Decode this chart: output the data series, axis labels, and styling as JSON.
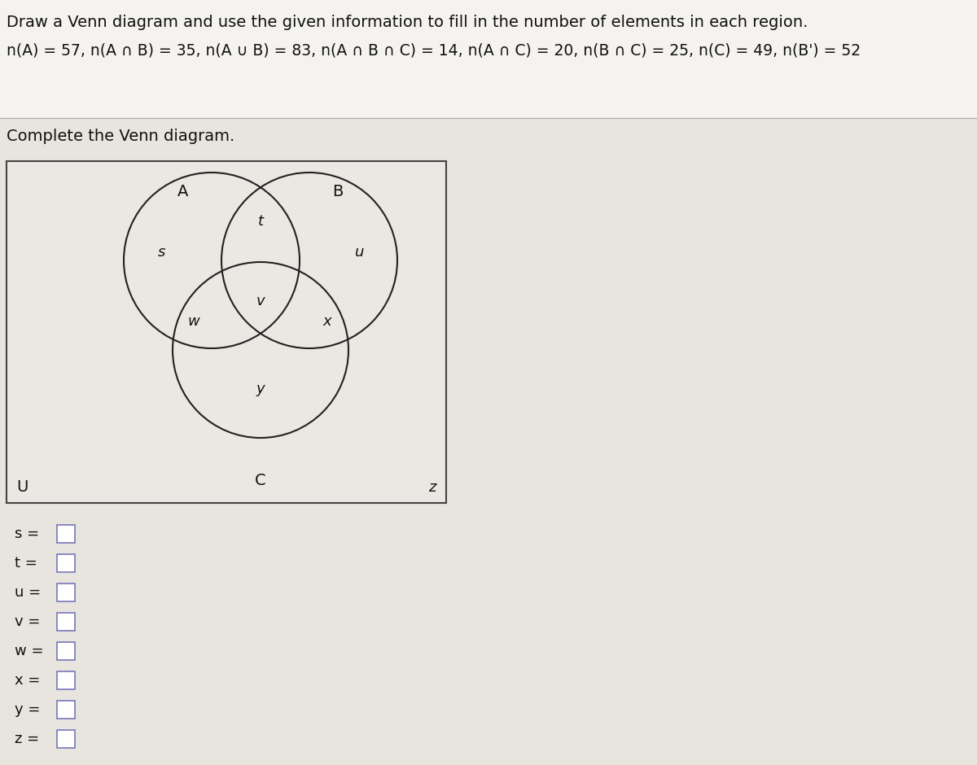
{
  "title_line1": "Draw a Venn diagram and use the given information to fill in the number of elements in each region.",
  "title_line2": "n(A) = 57, n(A ∩ B) = 35, n(A ∪ B) = 83, n(A ∩ B ∩ C) = 14, n(A ∩ C) = 20, n(B ∩ C) = 25, n(C) = 49, n(B') = 52",
  "subtitle": "Complete the Venn diagram.",
  "bg_color": "#e8e4de",
  "panel_color": "#e8e4de",
  "text_color": "#111111",
  "circle_edge_color": "#222222",
  "circle_linewidth": 1.5,
  "box_labels": [
    "s =",
    "t =",
    "u =",
    "v =",
    "w =",
    "x =",
    "y =",
    "z ="
  ]
}
